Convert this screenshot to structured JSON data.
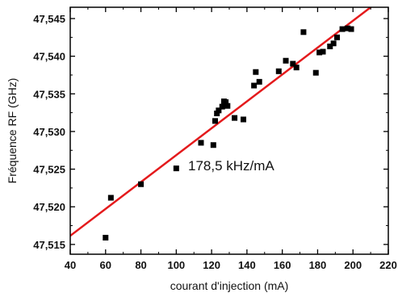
{
  "chart_data": {
    "type": "scatter",
    "xlabel": "courant d'injection (mA)",
    "ylabel": "Fréquence RF (GHz)",
    "xlim": [
      40,
      220
    ],
    "ylim": [
      47.5137,
      47.5465
    ],
    "x_ticks": [
      40,
      60,
      80,
      100,
      120,
      140,
      160,
      180,
      200,
      220
    ],
    "x_tick_labels": [
      "40",
      "60",
      "80",
      "100",
      "120",
      "140",
      "160",
      "180",
      "200",
      "220"
    ],
    "y_ticks": [
      47.515,
      47.52,
      47.525,
      47.53,
      47.535,
      47.54,
      47.545
    ],
    "y_tick_labels": [
      "47,515",
      "47,520",
      "47,525",
      "47,530",
      "47,535",
      "47,540",
      "47,545"
    ],
    "annotation": "178,5 kHz/mA",
    "grid": false,
    "colors": {
      "points": "#000000",
      "fit_line": "#e41a1c"
    },
    "series": [
      {
        "type": "scatter",
        "x": [
          60,
          63,
          80,
          100,
          114,
          121,
          122,
          123,
          124,
          126,
          127,
          128,
          129,
          133,
          138,
          144,
          145,
          147,
          158,
          162,
          166,
          168,
          172,
          179,
          181,
          183,
          187,
          189,
          191,
          194,
          197,
          199
        ],
        "y": [
          47.5159,
          47.5212,
          47.523,
          47.5251,
          47.5285,
          47.5282,
          47.5314,
          47.5324,
          47.5328,
          47.5333,
          47.534,
          47.5339,
          47.5334,
          47.5318,
          47.5316,
          47.5361,
          47.5379,
          47.5366,
          47.538,
          47.5394,
          47.539,
          47.5385,
          47.5432,
          47.5378,
          47.5405,
          47.5406,
          47.5413,
          47.5417,
          47.5425,
          47.5436,
          47.5437,
          47.5436
        ]
      },
      {
        "type": "line",
        "x": [
          40,
          220
        ],
        "y": [
          47.51615,
          47.54828
        ]
      }
    ]
  }
}
